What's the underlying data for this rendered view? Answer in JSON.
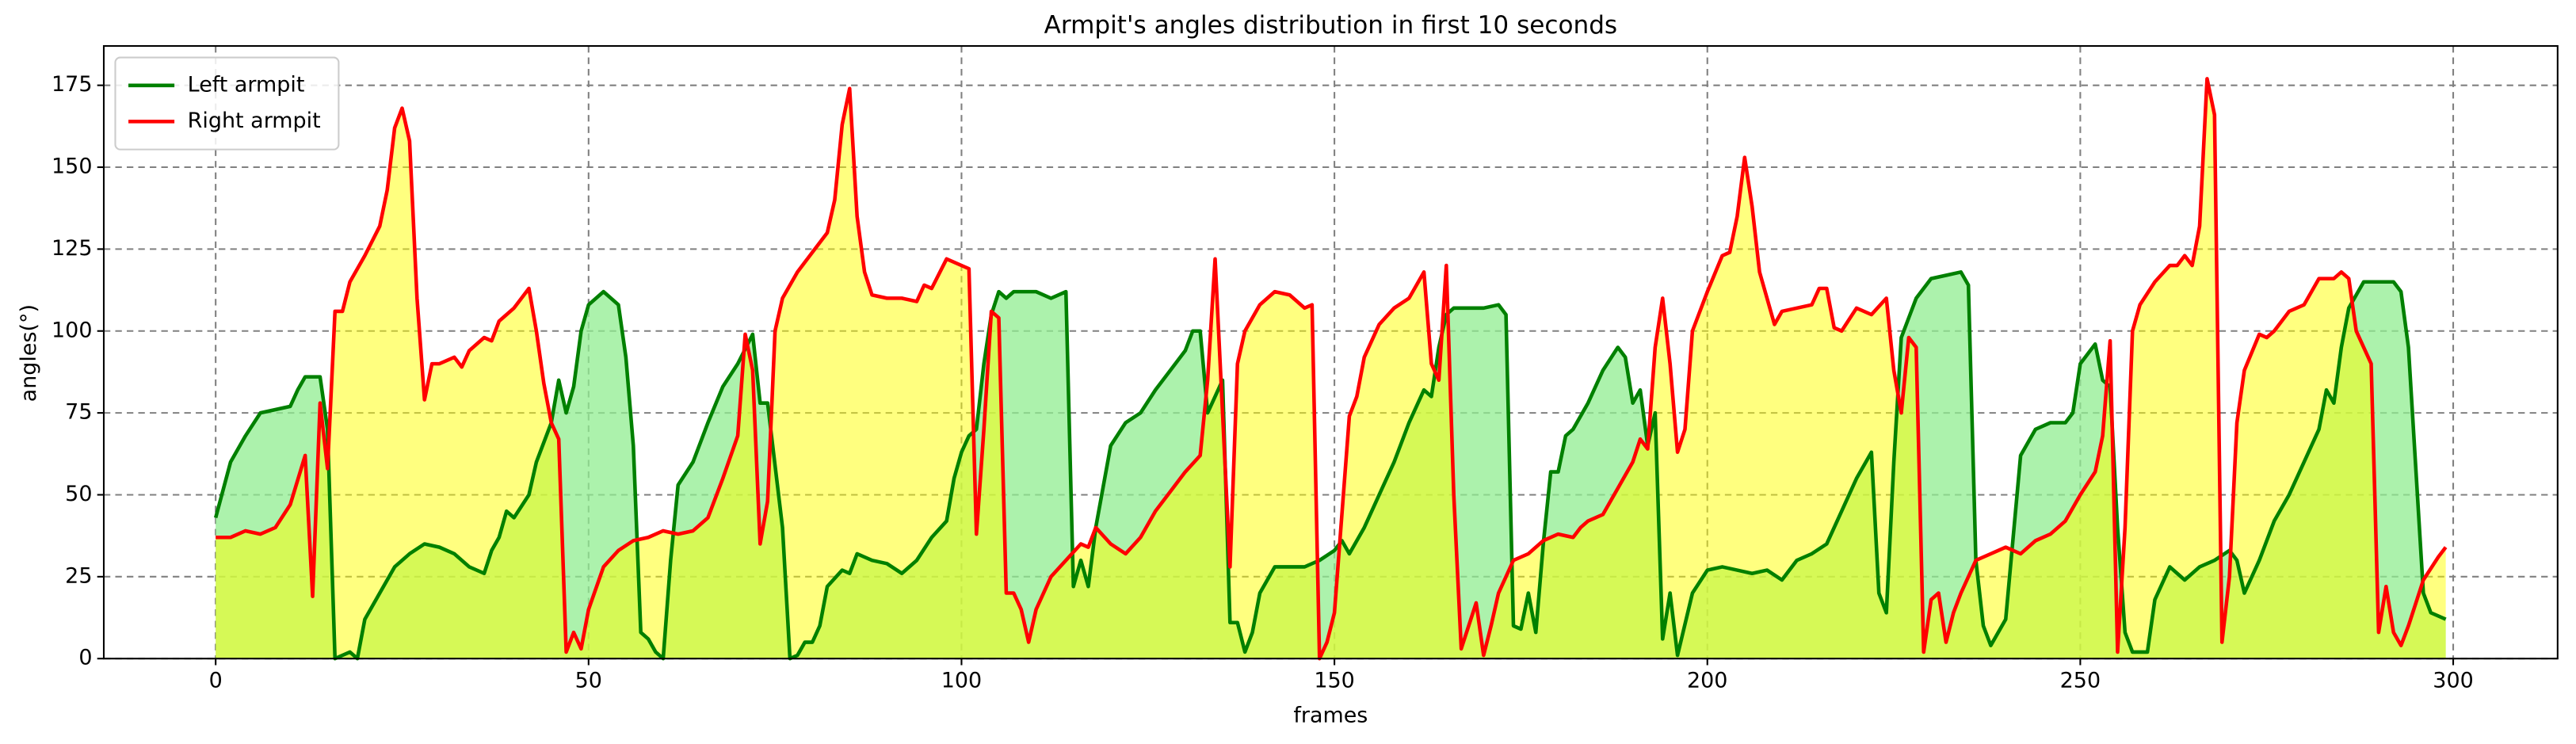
{
  "chart_data": {
    "type": "area-line",
    "title": "Armpit's angles distribution in first 10 seconds",
    "xlabel": "frames",
    "ylabel": "angles(°)",
    "xlim": [
      -15,
      314
    ],
    "ylim": [
      0,
      187
    ],
    "xticks": [
      0,
      50,
      100,
      150,
      200,
      250,
      300
    ],
    "yticks": [
      0,
      25,
      50,
      75,
      100,
      125,
      150,
      175
    ],
    "grid": true,
    "legend": "upper left",
    "series": [
      {
        "name": "Left armpit",
        "color": "#008000",
        "fill": "#90ee90",
        "x": [
          0,
          2,
          4,
          6,
          8,
          10,
          11,
          12,
          14,
          15,
          16,
          18,
          19,
          20,
          22,
          24,
          26,
          28,
          30,
          32,
          34,
          36,
          37,
          38,
          39,
          40,
          42,
          43,
          45,
          46,
          47,
          48,
          49,
          50,
          52,
          54,
          55,
          56,
          57,
          58,
          59,
          60,
          61,
          62,
          64,
          66,
          68,
          70,
          72,
          73,
          74,
          76,
          77,
          78,
          79,
          80,
          81,
          82,
          84,
          85,
          86,
          88,
          90,
          92,
          94,
          96,
          98,
          99,
          100,
          101,
          102,
          103,
          104,
          105,
          106,
          107,
          108,
          110,
          112,
          114,
          115,
          116,
          117,
          118,
          120,
          122,
          124,
          126,
          128,
          130,
          131,
          132,
          133,
          134,
          135,
          136,
          137,
          138,
          139,
          140,
          142,
          144,
          146,
          148,
          150,
          151,
          152,
          154,
          156,
          158,
          160,
          162,
          163,
          164,
          165,
          166,
          168,
          170,
          172,
          173,
          174,
          175,
          176,
          177,
          178,
          179,
          180,
          181,
          182,
          184,
          186,
          188,
          189,
          190,
          191,
          192,
          193,
          194,
          195,
          196,
          198,
          200,
          202,
          204,
          206,
          208,
          210,
          212,
          214,
          216,
          218,
          220,
          222,
          223,
          224,
          225,
          226,
          228,
          230,
          232,
          234,
          235,
          236,
          237,
          238,
          240,
          242,
          244,
          246,
          248,
          249,
          250,
          252,
          253,
          254,
          255,
          256,
          257,
          258,
          259,
          260,
          262,
          264,
          266,
          268,
          270,
          271,
          272,
          274,
          276,
          278,
          280,
          282,
          283,
          284,
          285,
          286,
          288,
          290,
          292,
          293,
          294,
          296,
          297,
          299
        ],
        "values": [
          43,
          60,
          68,
          75,
          76,
          77,
          82,
          86,
          86,
          70,
          0,
          2,
          0,
          12,
          20,
          28,
          32,
          35,
          34,
          32,
          28,
          26,
          33,
          37,
          45,
          43,
          50,
          60,
          72,
          85,
          75,
          83,
          100,
          108,
          112,
          108,
          92,
          65,
          8,
          6,
          2,
          0,
          30,
          53,
          60,
          72,
          83,
          90,
          99,
          78,
          78,
          40,
          0,
          1,
          5,
          5,
          10,
          22,
          27,
          26,
          32,
          30,
          29,
          26,
          30,
          37,
          42,
          55,
          63,
          68,
          70,
          90,
          105,
          112,
          110,
          112,
          112,
          112,
          110,
          112,
          22,
          30,
          22,
          40,
          65,
          72,
          75,
          82,
          88,
          94,
          100,
          100,
          75,
          80,
          85,
          11,
          11,
          2,
          8,
          20,
          28,
          28,
          28,
          30,
          33,
          36,
          32,
          40,
          50,
          60,
          72,
          82,
          80,
          95,
          105,
          107,
          107,
          107,
          108,
          105,
          10,
          9,
          20,
          8,
          35,
          57,
          57,
          68,
          70,
          78,
          88,
          95,
          92,
          78,
          82,
          65,
          75,
          6,
          20,
          1,
          20,
          27,
          28,
          27,
          26,
          27,
          24,
          30,
          32,
          35,
          45,
          55,
          63,
          20,
          14,
          60,
          98,
          110,
          116,
          117,
          118,
          114,
          30,
          10,
          4,
          12,
          62,
          70,
          72,
          72,
          75,
          90,
          96,
          85,
          83,
          40,
          8,
          2,
          2,
          2,
          18,
          28,
          24,
          28,
          30,
          33,
          30,
          20,
          30,
          42,
          50,
          60,
          70,
          82,
          78,
          95,
          107,
          115,
          115,
          115,
          112,
          95,
          20,
          14,
          12
        ]
      },
      {
        "name": "Right armpit",
        "color": "#ff0000",
        "fill": "#ffff00",
        "x": [
          0,
          2,
          4,
          6,
          8,
          10,
          12,
          13,
          14,
          15,
          16,
          17,
          18,
          20,
          22,
          23,
          24,
          25,
          26,
          27,
          28,
          29,
          30,
          32,
          33,
          34,
          36,
          37,
          38,
          40,
          42,
          43,
          44,
          45,
          46,
          47,
          48,
          49,
          50,
          52,
          54,
          56,
          58,
          60,
          62,
          64,
          66,
          68,
          70,
          71,
          72,
          73,
          74,
          75,
          76,
          78,
          80,
          82,
          83,
          84,
          85,
          86,
          87,
          88,
          90,
          92,
          94,
          95,
          96,
          98,
          100,
          101,
          102,
          103,
          104,
          105,
          106,
          107,
          108,
          109,
          110,
          112,
          114,
          116,
          117,
          118,
          120,
          122,
          124,
          126,
          128,
          130,
          132,
          133,
          134,
          135,
          136,
          137,
          138,
          140,
          142,
          144,
          146,
          147,
          148,
          149,
          150,
          152,
          153,
          154,
          156,
          158,
          160,
          162,
          163,
          164,
          165,
          166,
          167,
          168,
          169,
          170,
          171,
          172,
          174,
          176,
          178,
          180,
          182,
          183,
          184,
          186,
          188,
          190,
          191,
          192,
          193,
          194,
          195,
          196,
          197,
          198,
          200,
          202,
          203,
          204,
          205,
          206,
          207,
          208,
          209,
          210,
          212,
          214,
          215,
          216,
          217,
          218,
          220,
          222,
          224,
          225,
          226,
          227,
          228,
          229,
          230,
          231,
          232,
          233,
          234,
          236,
          238,
          240,
          242,
          244,
          246,
          248,
          250,
          252,
          253,
          254,
          255,
          256,
          257,
          258,
          260,
          262,
          263,
          264,
          265,
          266,
          267,
          268,
          269,
          270,
          271,
          272,
          274,
          275,
          276,
          278,
          280,
          282,
          284,
          285,
          286,
          287,
          288,
          289,
          290,
          291,
          292,
          293,
          294,
          296,
          298,
          299
        ],
        "values": [
          37,
          37,
          39,
          38,
          40,
          47,
          62,
          19,
          78,
          58,
          106,
          106,
          115,
          123,
          132,
          143,
          162,
          168,
          158,
          110,
          79,
          90,
          90,
          92,
          89,
          94,
          98,
          97,
          103,
          107,
          113,
          100,
          84,
          72,
          67,
          2,
          8,
          3,
          15,
          28,
          33,
          36,
          37,
          39,
          38,
          39,
          43,
          55,
          68,
          99,
          88,
          35,
          48,
          100,
          110,
          118,
          124,
          130,
          140,
          163,
          174,
          135,
          118,
          111,
          110,
          110,
          109,
          114,
          113,
          122,
          120,
          119,
          38,
          70,
          106,
          104,
          20,
          20,
          15,
          5,
          15,
          25,
          30,
          35,
          34,
          40,
          35,
          32,
          37,
          45,
          51,
          57,
          62,
          85,
          122,
          75,
          28,
          90,
          100,
          108,
          112,
          111,
          107,
          108,
          0,
          5,
          14,
          74,
          80,
          92,
          102,
          107,
          110,
          118,
          90,
          85,
          120,
          50,
          3,
          10,
          17,
          1,
          10,
          20,
          30,
          32,
          36,
          38,
          37,
          40,
          42,
          44,
          52,
          60,
          67,
          64,
          95,
          110,
          90,
          63,
          70,
          100,
          112,
          123,
          124,
          135,
          153,
          138,
          118,
          110,
          102,
          106,
          107,
          108,
          113,
          113,
          101,
          100,
          107,
          105,
          110,
          88,
          75,
          98,
          95,
          2,
          18,
          20,
          5,
          14,
          20,
          30,
          32,
          34,
          32,
          36,
          38,
          42,
          50,
          57,
          68,
          97,
          2,
          40,
          100,
          108,
          115,
          120,
          120,
          123,
          120,
          132,
          177,
          166,
          5,
          25,
          72,
          88,
          99,
          98,
          100,
          106,
          108,
          116,
          116,
          118,
          116,
          100,
          95,
          90,
          8,
          22,
          8,
          4,
          10,
          24,
          31,
          34
        ]
      }
    ]
  }
}
